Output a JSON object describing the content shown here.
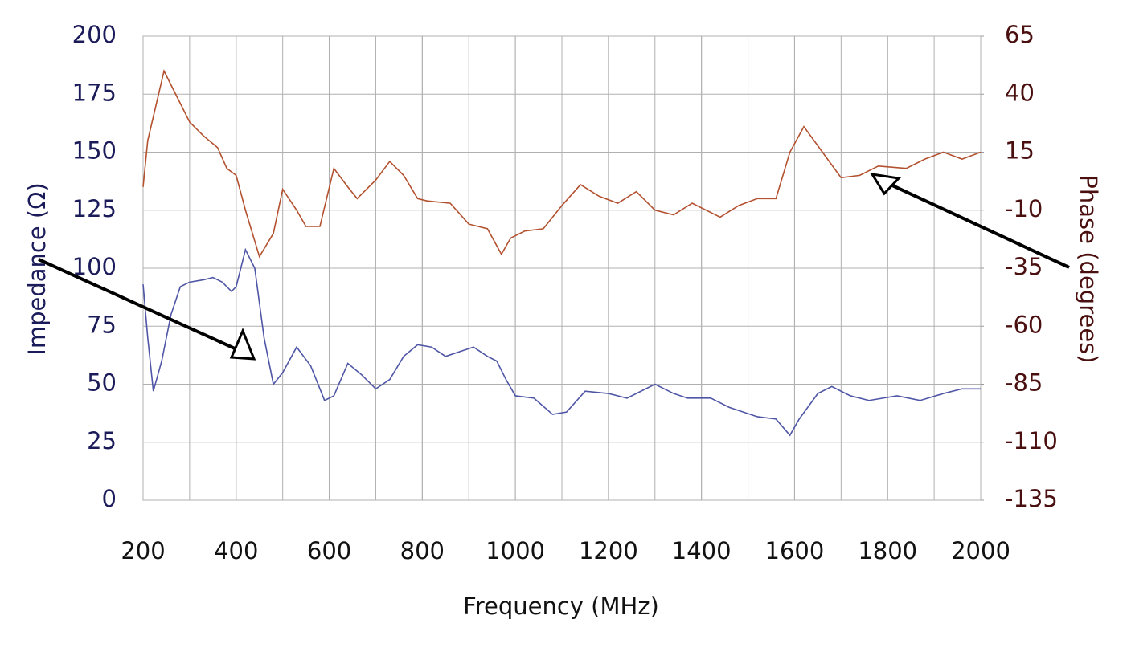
{
  "chart_data": {
    "type": "line",
    "xlabel": "Frequency (MHz)",
    "ylabel": "Impedance (Ω)",
    "y2label": "Phase (degrees)",
    "xlim": [
      200,
      2000
    ],
    "xticks": [
      200,
      400,
      600,
      800,
      1000,
      1200,
      1400,
      1600,
      1800,
      2000
    ],
    "ylim": [
      0,
      200
    ],
    "yticks": [
      0,
      25,
      50,
      75,
      100,
      125,
      150,
      175,
      200
    ],
    "y2lim": [
      -135,
      65
    ],
    "y2ticks": [
      -135,
      -110,
      -85,
      -60,
      -35,
      -10,
      15,
      40,
      65
    ],
    "grid": true,
    "minor_grid_step": 100,
    "series": [
      {
        "color": "#4f56a6",
        "x": [
          200,
          210,
          222,
          240,
          260,
          280,
          300,
          330,
          350,
          370,
          390,
          400,
          420,
          440,
          460,
          480,
          500,
          530,
          560,
          590,
          610,
          640,
          670,
          700,
          730,
          760,
          790,
          820,
          850,
          880,
          910,
          940,
          960,
          980,
          1000,
          1040,
          1080,
          1110,
          1150,
          1200,
          1240,
          1300,
          1340,
          1370,
          1420,
          1460,
          1520,
          1560,
          1590,
          1610,
          1650,
          1680,
          1720,
          1760,
          1820,
          1870,
          1920,
          1960,
          2000
        ],
        "values": [
          93,
          70,
          47,
          60,
          80,
          92,
          94,
          95,
          96,
          94,
          90,
          92,
          108,
          100,
          70,
          50,
          55,
          66,
          58,
          43,
          45,
          59,
          54,
          48,
          52,
          62,
          67,
          66,
          62,
          64,
          66,
          62,
          60,
          52,
          45,
          44,
          37,
          38,
          47,
          46,
          44,
          50,
          46,
          44,
          44,
          40,
          36,
          35,
          28,
          35,
          46,
          49,
          45,
          43,
          45,
          43,
          46,
          48,
          48
        ]
      },
      {
        "color": "#b3512f",
        "axis": "y2",
        "x": [
          200,
          210,
          245,
          270,
          300,
          330,
          360,
          380,
          400,
          420,
          450,
          480,
          500,
          530,
          550,
          580,
          610,
          640,
          660,
          700,
          730,
          760,
          790,
          810,
          860,
          900,
          940,
          970,
          990,
          1020,
          1060,
          1100,
          1140,
          1180,
          1220,
          1260,
          1300,
          1340,
          1380,
          1440,
          1480,
          1520,
          1560,
          1590,
          1620,
          1660,
          1700,
          1740,
          1780,
          1840,
          1880,
          1920,
          1960,
          2000
        ],
        "values": [
          0,
          20,
          50,
          40,
          28,
          22,
          17,
          8,
          5,
          -10,
          -30,
          -20,
          -1,
          -10,
          -17,
          -17,
          8,
          0,
          -5,
          3,
          11,
          5,
          -5,
          -6,
          -7,
          -16,
          -18,
          -29,
          -22,
          -19,
          -18,
          -8,
          1,
          -4,
          -7,
          -2,
          -10,
          -12,
          -7,
          -13,
          -8,
          -5,
          -5,
          15,
          26,
          15,
          4,
          5,
          9,
          8,
          12,
          15,
          12,
          15
        ]
      }
    ]
  }
}
